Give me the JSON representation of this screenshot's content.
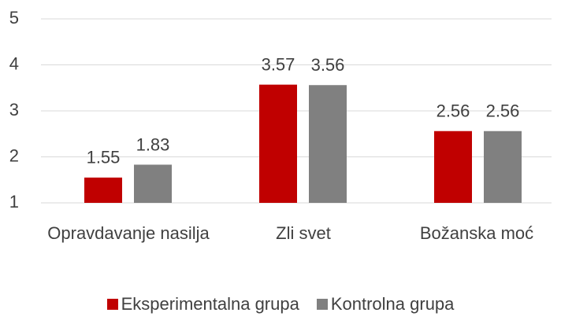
{
  "chart_data": {
    "type": "bar",
    "categories": [
      "Opravdavanje nasilja",
      "Zli svet",
      "Božanska moć"
    ],
    "series": [
      {
        "name": "Eksperimentalna grupa",
        "color": "#c00000",
        "values": [
          1.55,
          3.57,
          2.56
        ]
      },
      {
        "name": "Kontrolna grupa",
        "color": "#808080",
        "values": [
          1.83,
          3.56,
          2.56
        ]
      }
    ],
    "ylim": [
      1,
      5
    ],
    "yticks": [
      1,
      2,
      3,
      4,
      5
    ],
    "grid": true,
    "legend": "bottom"
  }
}
